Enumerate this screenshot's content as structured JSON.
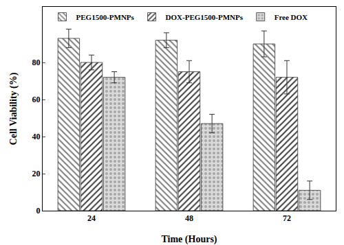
{
  "chart_data": {
    "type": "bar",
    "x_label": "Time (Hours)",
    "y_label": "Cell Viability (%)",
    "categories": [
      "24",
      "48",
      "72"
    ],
    "series": [
      {
        "name": "PEG1500-PMNPs",
        "color": "#7f7f7f",
        "values": [
          93,
          92,
          90
        ],
        "errors": [
          5,
          4,
          7
        ]
      },
      {
        "name": "DOX-PEG1500-PMNPs",
        "color": "#404040",
        "values": [
          80,
          75,
          72
        ],
        "errors": [
          4,
          6,
          9
        ]
      },
      {
        "name": "Free DOX",
        "color": "#a6a6a6",
        "values": [
          72,
          47,
          11
        ],
        "errors": [
          3,
          5,
          5
        ]
      }
    ],
    "ylim": [
      0,
      110
    ],
    "yticks": [
      0,
      20,
      40,
      60,
      80
    ],
    "grid": false,
    "legend": "top"
  }
}
